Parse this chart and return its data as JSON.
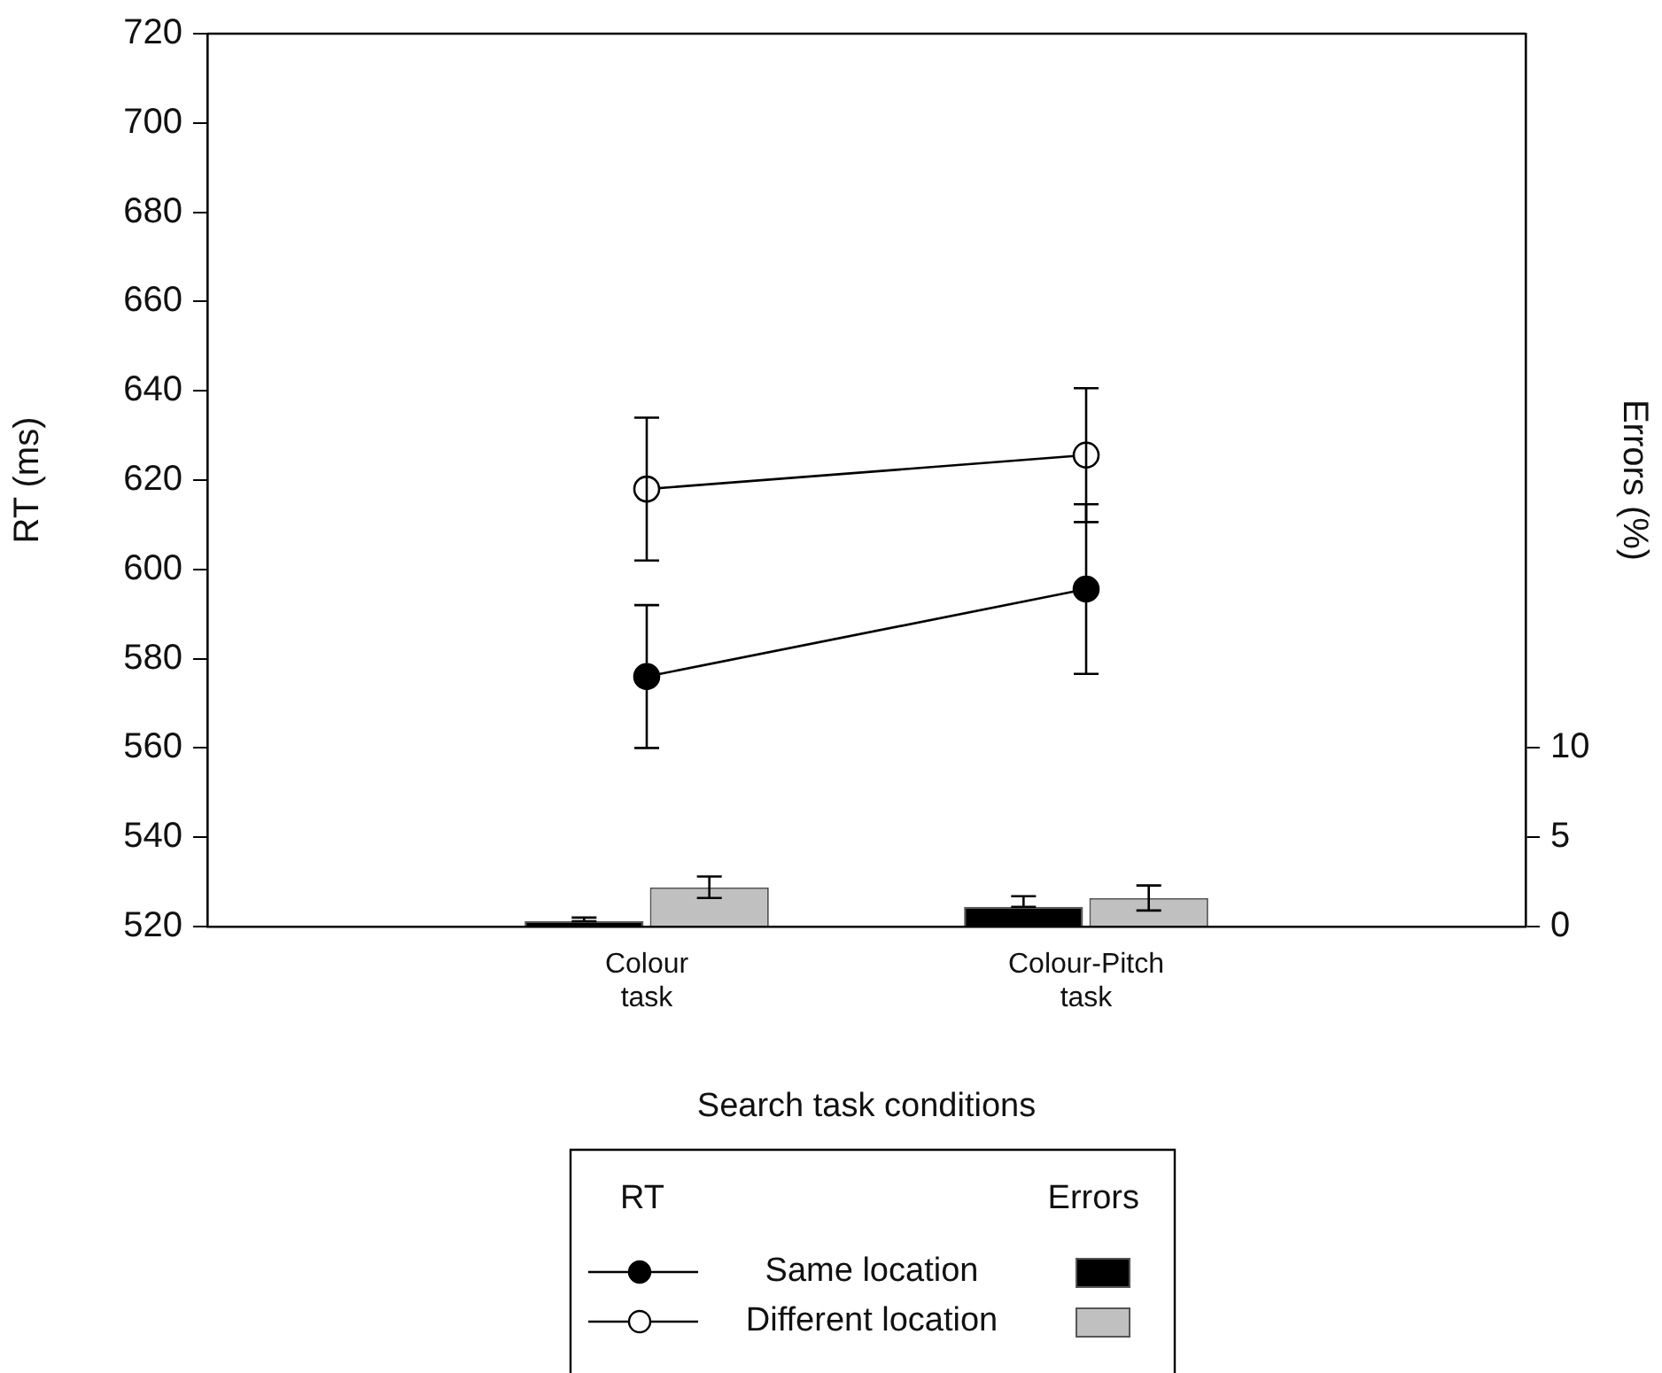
{
  "chart_data": {
    "type": "line",
    "xlabel": "Search task conditions",
    "ylabel": "RT (ms)",
    "y2label": "Errors (%)",
    "categories": [
      "Colour task",
      "Colour-Pitch task"
    ],
    "ylim": [
      520,
      720
    ],
    "yticks": [
      520,
      540,
      560,
      580,
      600,
      620,
      640,
      660,
      680,
      700,
      720
    ],
    "y2lim": [
      0,
      50
    ],
    "y2ticks": [
      0,
      5,
      10
    ],
    "legend": "bottom",
    "annotations": [
      "RT",
      "Errors"
    ],
    "marker": "circle",
    "series": [
      {
        "name": "Same location",
        "color": "#000000",
        "values": [
          576,
          595.6
        ],
        "errors": [
          16,
          19
        ]
      },
      {
        "name": "Different location",
        "color": "#ffffff",
        "values": [
          618,
          625.6
        ],
        "errors": [
          16,
          15
        ]
      },
      {
        "type": "bar",
        "axis": "y2",
        "color": "#000000",
        "values": [
          0.3,
          1.1
        ],
        "errors": [
          [
            0.3,
            0.5
          ],
          [
            1.1,
            1.7
          ]
        ]
      },
      {
        "type": "bar",
        "axis": "y2",
        "color": "#c0c0c0",
        "values": [
          2.2,
          1.6
        ],
        "errors": [
          0.6,
          0.7
        ]
      }
    ]
  }
}
